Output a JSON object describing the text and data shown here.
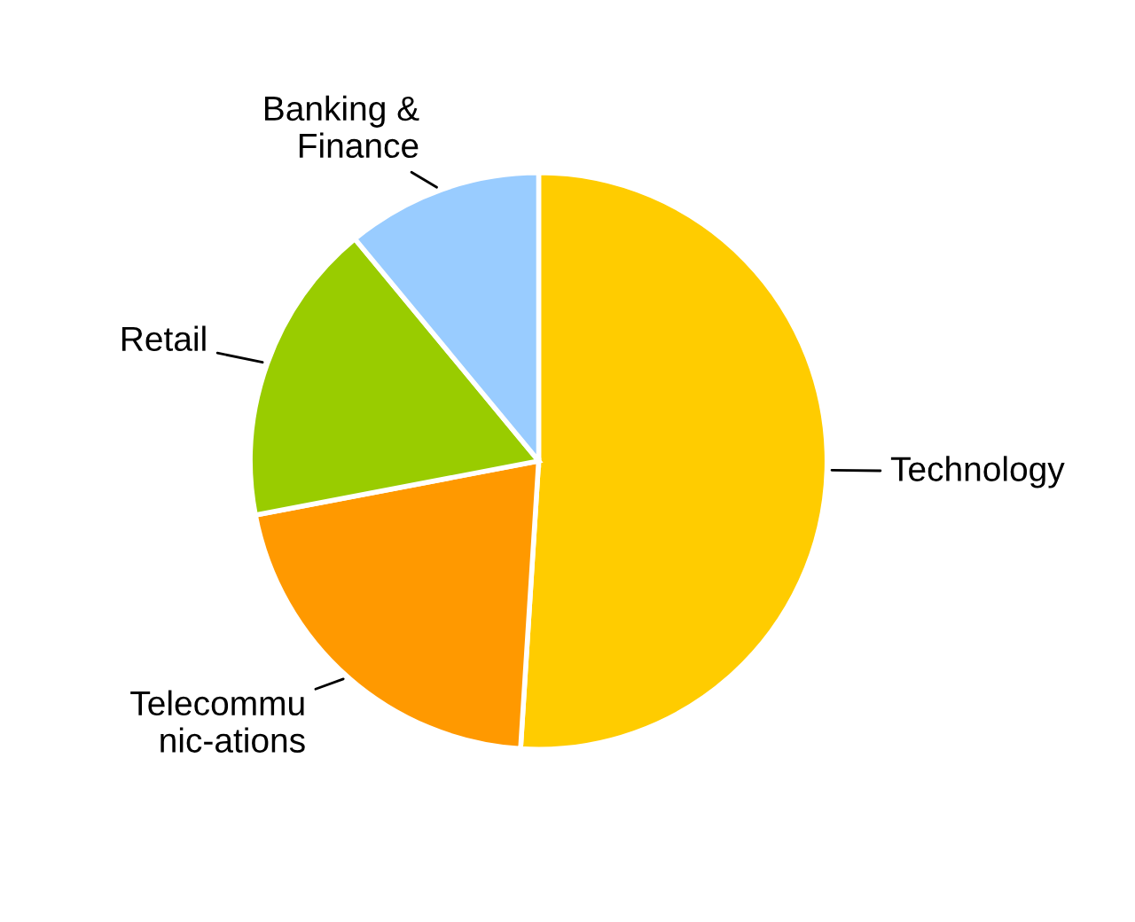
{
  "chart_data": {
    "type": "pie",
    "categories": [
      "Technology",
      "Telecommu\nnic-ations",
      "Retail",
      "Banking &\nFinance"
    ],
    "values": [
      51,
      21,
      17,
      11
    ],
    "colors": [
      "#ffcc00",
      "#ff9900",
      "#99cc00",
      "#99ccff"
    ],
    "legend": false
  }
}
